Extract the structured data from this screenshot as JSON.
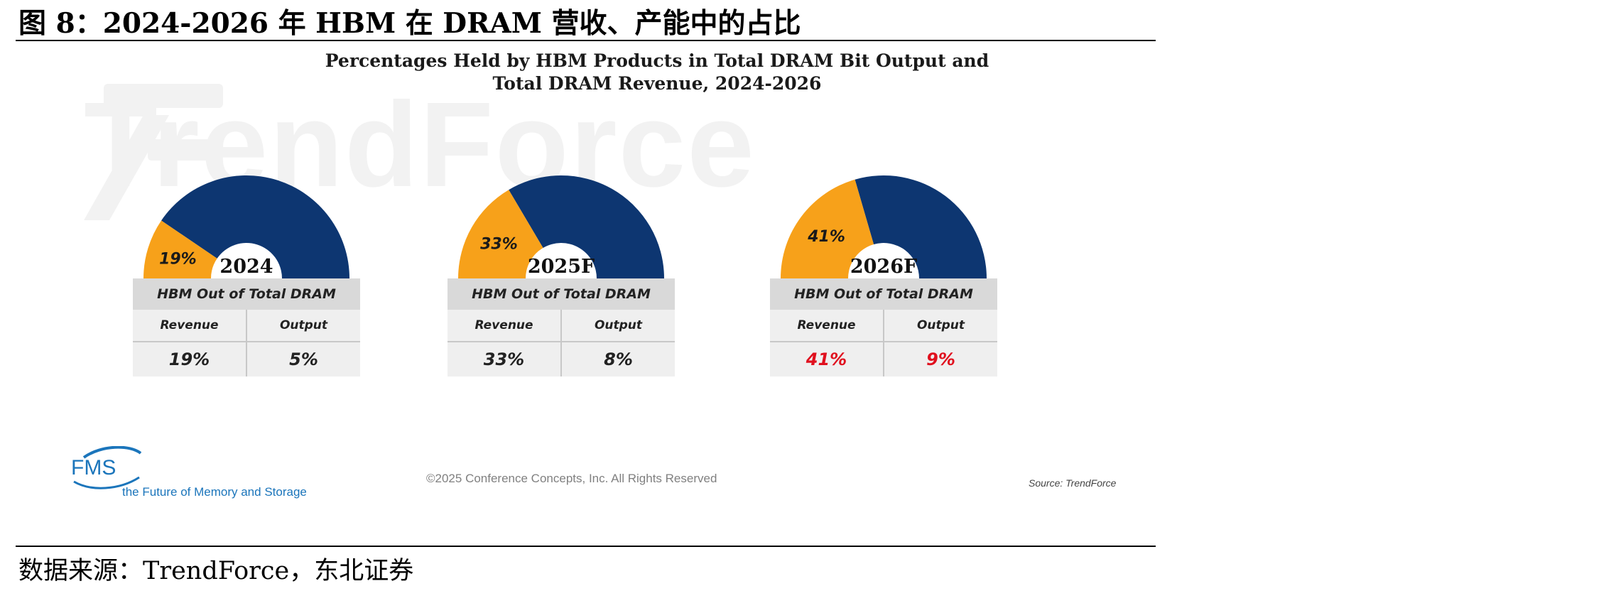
{
  "figure": {
    "title": "图 8：2024-2026 年 HBM 在 DRAM 营收、产能中的占比",
    "source": "数据来源：TrendForce，东北证券"
  },
  "panel": {
    "watermark": "TrendForce",
    "copyright": "©2025 Conference Concepts, Inc. All Rights Reserved",
    "source_note": "Source: TrendForce",
    "logo_text": "FMS",
    "logo_tagline": "the Future of Memory and Storage"
  },
  "colors": {
    "hbm": "#F7A11A",
    "dram": "#0D3671",
    "highlight": "#E0101E",
    "table_head": "#D9D9D9",
    "table_body": "#EFEFEF"
  },
  "chart_data": {
    "type": "pie",
    "title_lines": [
      "Percentages Held by HBM Products in Total DRAM Bit Output and",
      "Total DRAM Revenue, 2024-2026"
    ],
    "table_header": "HBM Out of Total DRAM",
    "column_labels": [
      "Revenue",
      "Output"
    ],
    "years": [
      {
        "year": "2024",
        "revenue_share": 19,
        "revenue_label": "19%",
        "output_share": 5,
        "output_label": "5%",
        "highlight": false
      },
      {
        "year": "2025F",
        "revenue_share": 33,
        "revenue_label": "33%",
        "output_share": 8,
        "output_label": "8%",
        "highlight": false
      },
      {
        "year": "2026F",
        "revenue_share": 41,
        "revenue_label": "41%",
        "output_share": 9,
        "output_label": "9%",
        "highlight": true
      }
    ]
  }
}
